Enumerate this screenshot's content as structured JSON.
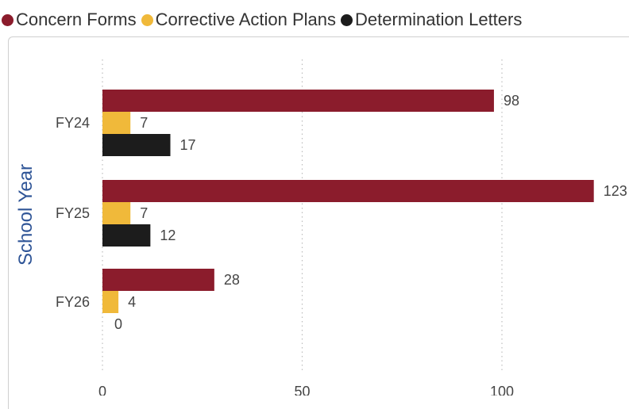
{
  "legend": [
    {
      "label": "Concern Forms",
      "color": "#8b1c2c"
    },
    {
      "label": "Corrective Action Plans",
      "color": "#f0b93a"
    },
    {
      "label": "Determination Letters",
      "color": "#1c1c1c"
    }
  ],
  "chart_data": {
    "type": "bar",
    "orientation": "horizontal",
    "categories": [
      "FY24",
      "FY25",
      "FY26"
    ],
    "series": [
      {
        "name": "Concern Forms",
        "values": [
          98,
          123,
          28
        ],
        "color": "#8b1c2c"
      },
      {
        "name": "Corrective Action Plans",
        "values": [
          7,
          7,
          4
        ],
        "color": "#f0b93a"
      },
      {
        "name": "Determination Letters",
        "values": [
          17,
          12,
          0
        ],
        "color": "#1c1c1c"
      }
    ],
    "data_labels": [
      [
        "98",
        "7",
        "17"
      ],
      [
        "123",
        "7",
        "12"
      ],
      [
        "28",
        "4",
        "0"
      ]
    ],
    "ylabel": "School Year",
    "xlabel": "",
    "xlim": [
      0,
      130
    ],
    "xticks": [
      0,
      50,
      100
    ],
    "xtick_labels": [
      "0",
      "50",
      "100"
    ],
    "grid": "vertical-dotted",
    "legend_position": "top-left"
  }
}
